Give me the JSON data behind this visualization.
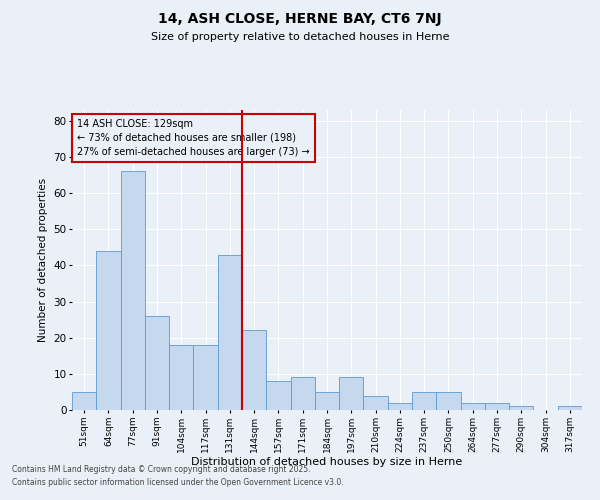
{
  "title1": "14, ASH CLOSE, HERNE BAY, CT6 7NJ",
  "title2": "Size of property relative to detached houses in Herne",
  "xlabel": "Distribution of detached houses by size in Herne",
  "ylabel": "Number of detached properties",
  "categories": [
    "51sqm",
    "64sqm",
    "77sqm",
    "91sqm",
    "104sqm",
    "117sqm",
    "131sqm",
    "144sqm",
    "157sqm",
    "171sqm",
    "184sqm",
    "197sqm",
    "210sqm",
    "224sqm",
    "237sqm",
    "250sqm",
    "264sqm",
    "277sqm",
    "290sqm",
    "304sqm",
    "317sqm"
  ],
  "values": [
    5,
    44,
    66,
    26,
    18,
    18,
    43,
    22,
    8,
    9,
    5,
    9,
    4,
    2,
    5,
    5,
    2,
    2,
    1,
    0,
    1
  ],
  "bar_color": "#c5d8ed",
  "bar_edge_color": "#5b9bd5",
  "background_color": "#eaf0f8",
  "grid_color": "#ffffff",
  "vline_x": 6.5,
  "vline_color": "#cc0000",
  "annotation_text": "14 ASH CLOSE: 129sqm\n← 73% of detached houses are smaller (198)\n27% of semi-detached houses are larger (73) →",
  "annotation_box_color": "#cc0000",
  "ylim": [
    0,
    83
  ],
  "yticks": [
    0,
    10,
    20,
    30,
    40,
    50,
    60,
    70,
    80
  ],
  "footer1": "Contains HM Land Registry data © Crown copyright and database right 2025.",
  "footer2": "Contains public sector information licensed under the Open Government Licence v3.0."
}
